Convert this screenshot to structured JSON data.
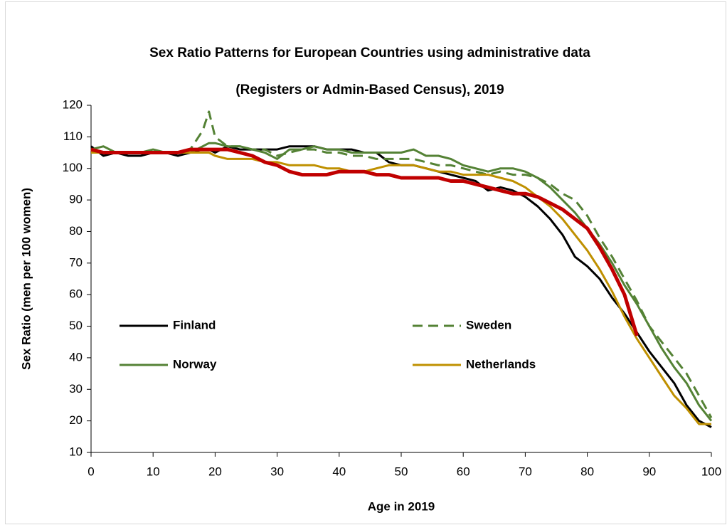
{
  "chart_data": {
    "type": "line",
    "title": "Sex Ratio Patterns for European Countries using administrative data",
    "subtitle": "(Registers or Admin-Based Census), 2019",
    "x_label": "Age in 2019",
    "y_label": "Sex Ratio (men per 100 women)",
    "xlim": [
      0,
      100
    ],
    "xticks": [
      0,
      10,
      20,
      30,
      40,
      50,
      60,
      70,
      80,
      90,
      100
    ],
    "ylim": [
      10,
      120
    ],
    "yticks": [
      10,
      20,
      30,
      40,
      50,
      60,
      70,
      80,
      90,
      100,
      110,
      120
    ],
    "grid": false,
    "legend": "inside",
    "x": [
      0,
      2,
      4,
      6,
      8,
      10,
      12,
      14,
      16,
      18,
      19,
      20,
      22,
      24,
      26,
      28,
      30,
      32,
      34,
      36,
      38,
      40,
      42,
      44,
      46,
      48,
      50,
      52,
      54,
      56,
      58,
      60,
      62,
      64,
      66,
      68,
      70,
      72,
      74,
      76,
      78,
      80,
      82,
      84,
      86,
      88,
      90,
      92,
      94,
      96,
      98,
      100
    ],
    "series": [
      {
        "name": "Finland",
        "color": "#000000",
        "dash": false,
        "width": 3,
        "values": [
          107,
          104,
          105,
          104,
          104,
          105,
          105,
          104,
          105,
          106,
          106,
          105,
          107,
          106,
          106,
          106,
          106,
          107,
          107,
          107,
          106,
          106,
          106,
          105,
          105,
          102,
          101,
          101,
          100,
          99,
          98,
          97,
          96,
          93,
          94,
          93,
          91,
          88,
          84,
          79,
          72,
          69,
          65,
          59,
          54,
          48,
          42,
          37,
          32,
          25,
          20,
          18
        ]
      },
      {
        "name": "Sweden",
        "color": "#548235",
        "dash": true,
        "width": 3,
        "values": [
          106,
          105,
          105,
          105,
          105,
          105,
          105,
          105,
          106,
          112,
          118,
          110,
          107,
          107,
          106,
          106,
          104,
          105,
          106,
          106,
          105,
          105,
          104,
          104,
          103,
          103,
          103,
          103,
          102,
          101,
          101,
          100,
          99,
          98,
          99,
          98,
          98,
          97,
          95,
          92,
          90,
          85,
          78,
          72,
          65,
          58,
          50,
          45,
          40,
          35,
          28,
          21
        ]
      },
      {
        "name": "Norway",
        "color": "#548235",
        "dash": false,
        "width": 3,
        "values": [
          106,
          107,
          105,
          105,
          105,
          106,
          105,
          105,
          105,
          107,
          108,
          108,
          107,
          107,
          106,
          105,
          103,
          106,
          106,
          107,
          106,
          106,
          105,
          105,
          105,
          105,
          105,
          106,
          104,
          104,
          103,
          101,
          100,
          99,
          100,
          100,
          99,
          97,
          94,
          90,
          86,
          81,
          76,
          70,
          63,
          57,
          50,
          43,
          37,
          32,
          25,
          20
        ]
      },
      {
        "name": "Netherlands",
        "color": "#bf9000",
        "dash": false,
        "width": 3,
        "values": [
          105,
          105,
          105,
          105,
          105,
          105,
          105,
          105,
          105,
          105,
          105,
          104,
          103,
          103,
          103,
          102,
          102,
          101,
          101,
          101,
          100,
          100,
          99,
          99,
          100,
          101,
          101,
          101,
          100,
          99,
          99,
          98,
          98,
          98,
          97,
          96,
          94,
          91,
          88,
          84,
          79,
          74,
          68,
          61,
          53,
          46,
          40,
          34,
          28,
          24,
          19,
          19
        ]
      },
      {
        "color": "#c00000",
        "dash": false,
        "width": 5,
        "values": [
          106,
          105,
          105,
          105,
          105,
          105,
          105,
          105,
          106,
          106,
          106,
          106,
          106,
          105,
          104,
          102,
          101,
          99,
          98,
          98,
          98,
          99,
          99,
          99,
          98,
          98,
          97,
          97,
          97,
          97,
          96,
          96,
          95,
          94,
          93,
          92,
          92,
          91,
          89,
          87,
          84,
          81,
          75,
          68,
          60,
          47,
          null,
          null,
          null,
          null,
          null,
          null
        ]
      }
    ]
  }
}
